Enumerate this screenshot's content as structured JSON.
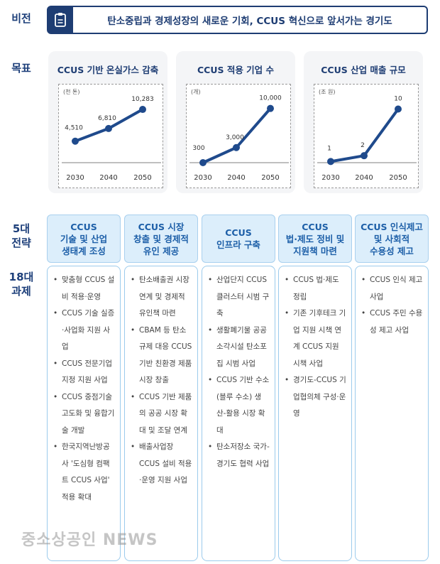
{
  "labels": {
    "vision": "비전",
    "goal": "목표",
    "strategy": "5대\n전략",
    "tasks": "18대\n과제"
  },
  "vision": {
    "icon": "clipboard-icon",
    "text": "탄소중립과 경제성장의 새로운 기회, CCUS 혁신으로 앞서가는 경기도"
  },
  "chart_data": [
    {
      "type": "line",
      "title": "CCUS 기반 온실가스 감축",
      "unit": "(천 톤)",
      "categories": [
        "2030",
        "2040",
        "2050"
      ],
      "values": [
        4510,
        6810,
        10283
      ],
      "value_labels": [
        "4,510",
        "6,810",
        "10,283"
      ],
      "ylim": [
        600,
        13000
      ]
    },
    {
      "type": "line",
      "title": "CCUS 적용 기업 수",
      "unit": "(개)",
      "categories": [
        "2030",
        "2040",
        "2050"
      ],
      "values": [
        300,
        3000,
        10000
      ],
      "value_labels": [
        "300",
        "3,000",
        "10,000"
      ],
      "ylim": [
        300,
        12500
      ]
    },
    {
      "type": "line",
      "title": "CCUS 산업 매출 규모",
      "unit": "(조 원)",
      "categories": [
        "2030",
        "2040",
        "2050"
      ],
      "values": [
        1,
        2,
        10
      ],
      "value_labels": [
        "1",
        "2",
        "10"
      ],
      "ylim": [
        0.8,
        12.5
      ]
    }
  ],
  "colors": {
    "navy": "#1e3d73",
    "line": "#1f4a8c",
    "header_bg": "#dceefb",
    "accent": "#1d5fa8"
  },
  "strategies": [
    {
      "title": "CCUS\n기술 및 산업\n생태계 조성",
      "tasks": [
        "맞춤형 CCUS 설비 적용·운영",
        "CCUS 기술 실증·사업화 지원 사업",
        "CCUS 전문기업 지정 지원 사업",
        "CCUS 중점기술 고도화 및 융합기술 개발",
        "한국지역난방공사 '도심형 컴팩트 CCUS 사업' 적용 확대"
      ]
    },
    {
      "title": "CCUS 시장\n창출 및 경제적\n유인 제공",
      "tasks": [
        "탄소배출권 시장 연계 및 경제적 유인책 마련",
        "CBAM 등 탄소규제 대응 CCUS 기반 친환경 제품 시장 창출",
        "CCUS 기반 제품의 공공 시장 확대 및 조달 연계",
        "배출사업장 CCUS 설비 적용·운영 지원 사업"
      ]
    },
    {
      "title": "CCUS\n인프라 구축",
      "tasks": [
        "산업단지 CCUS 클러스터 시범 구축",
        "생활폐기물 공공소각시설 탄소포집 시범 사업",
        "CCUS 기반 수소(블루 수소) 생산-활용 시장 확대",
        "탄소저장소 국가-경기도 협력 사업"
      ]
    },
    {
      "title": "CCUS\n법·제도 정비 및\n지원책 마련",
      "tasks": [
        "CCUS 법·제도 정립",
        "기존 기후테크 기업 지원 시책 연계 CCUS 지원 시책 사업",
        "경기도-CCUS 기업협의체 구성·운영"
      ]
    },
    {
      "title": "CCUS 인식제고\n및 사회적\n수용성 제고",
      "tasks": [
        "CCUS 인식 제고 사업",
        "CCUS 주민 수용성 제고 사업"
      ]
    }
  ],
  "watermark": "중소상공인 NEWS"
}
